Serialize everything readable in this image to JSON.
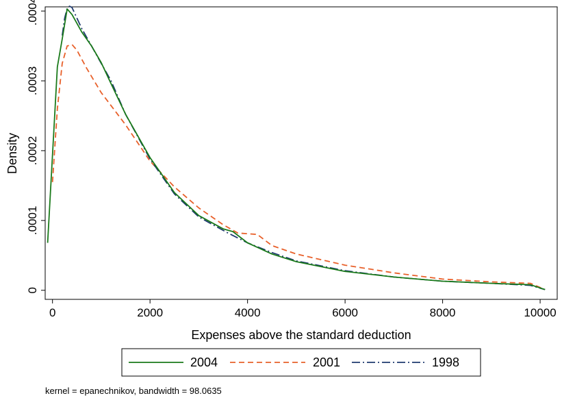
{
  "chart_data": {
    "type": "line",
    "xlabel": "Expenses above the standard deduction",
    "ylabel": "Density",
    "xlim": [
      -150,
      10350
    ],
    "ylim": [
      -1.3e-05,
      0.000406
    ],
    "xticks": [
      0,
      2000,
      4000,
      6000,
      8000,
      10000
    ],
    "xtick_labels": [
      "0",
      "2000",
      "4000",
      "6000",
      "8000",
      "10000"
    ],
    "yticks": [
      0,
      0.0001,
      0.0002,
      0.0003,
      0.0004
    ],
    "ytick_labels": [
      "0",
      ".0001",
      ".0002",
      ".0003",
      ".0004"
    ],
    "grid": false,
    "legend_placement": "bottom",
    "note": "kernel = epanechnikov, bandwidth = 98.0635",
    "series": [
      {
        "name": "2004",
        "color": "#1a7a1a",
        "dash": "solid",
        "points": [
          [
            -100,
            6.8e-05
          ],
          [
            100,
            0.00032
          ],
          [
            200,
            0.00036
          ],
          [
            300,
            0.000403
          ],
          [
            400,
            0.000395
          ],
          [
            600,
            0.00037
          ],
          [
            800,
            0.00035
          ],
          [
            1000,
            0.000326
          ],
          [
            1200,
            0.000296
          ],
          [
            1500,
            0.000252
          ],
          [
            2000,
            0.00019
          ],
          [
            2500,
            0.00014
          ],
          [
            3000,
            0.000107
          ],
          [
            3500,
            8.8e-05
          ],
          [
            3700,
            8.4e-05
          ],
          [
            4000,
            6.8e-05
          ],
          [
            4500,
            5.2e-05
          ],
          [
            5000,
            4.1e-05
          ],
          [
            6000,
            2.7e-05
          ],
          [
            7000,
            1.9e-05
          ],
          [
            8000,
            1.3e-05
          ],
          [
            9000,
            1e-05
          ],
          [
            9800,
            8e-06
          ],
          [
            10100,
            1e-06
          ]
        ]
      },
      {
        "name": "2001",
        "color": "#e8602a",
        "dash": "8,5",
        "points": [
          [
            0,
            0.000155
          ],
          [
            100,
            0.00026
          ],
          [
            200,
            0.000325
          ],
          [
            300,
            0.00035
          ],
          [
            400,
            0.000352
          ],
          [
            500,
            0.000344
          ],
          [
            700,
            0.000318
          ],
          [
            1000,
            0.000283
          ],
          [
            1500,
            0.000237
          ],
          [
            2000,
            0.000185
          ],
          [
            2500,
            0.000148
          ],
          [
            3000,
            0.000118
          ],
          [
            3500,
            9.4e-05
          ],
          [
            3800,
            8.2e-05
          ],
          [
            4200,
            8e-05
          ],
          [
            4500,
            6.4e-05
          ],
          [
            5000,
            5.2e-05
          ],
          [
            6000,
            3.6e-05
          ],
          [
            7000,
            2.5e-05
          ],
          [
            8000,
            1.6e-05
          ],
          [
            9000,
            1.2e-05
          ],
          [
            9800,
            1e-05
          ],
          [
            10100,
            1e-06
          ]
        ]
      },
      {
        "name": "1998",
        "color": "#1f3a6e",
        "dash": "12,4,2,4",
        "points": [
          [
            200,
            0.000365
          ],
          [
            250,
            0.00039
          ],
          [
            300,
            0.000404
          ],
          [
            350,
            0.000407
          ],
          [
            400,
            0.000405
          ],
          [
            600,
            0.000375
          ],
          [
            800,
            0.00035
          ],
          [
            1000,
            0.000325
          ],
          [
            1200,
            0.0003
          ],
          [
            1500,
            0.000252
          ],
          [
            2000,
            0.000188
          ],
          [
            2500,
            0.000138
          ],
          [
            3000,
            0.000105
          ],
          [
            3600,
            8.2e-05
          ],
          [
            4000,
            6.8e-05
          ],
          [
            4500,
            5.4e-05
          ],
          [
            5000,
            4.2e-05
          ],
          [
            6000,
            2.8e-05
          ],
          [
            7000,
            1.9e-05
          ],
          [
            8000,
            1.3e-05
          ],
          [
            9000,
            1e-05
          ],
          [
            9800,
            7e-06
          ],
          [
            10100,
            1e-06
          ]
        ]
      }
    ]
  }
}
